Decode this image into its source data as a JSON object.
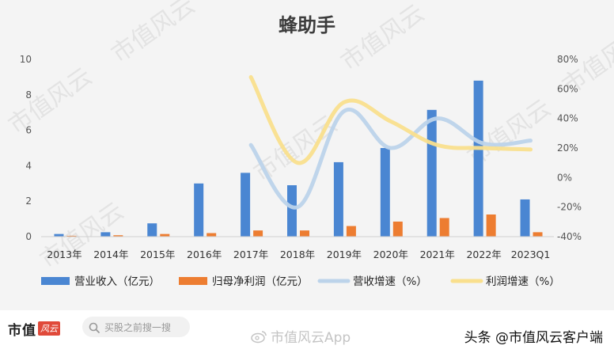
{
  "chart_data": {
    "type": "bar+line",
    "title": "蜂助手",
    "categories": [
      "2013年",
      "2014年",
      "2015年",
      "2016年",
      "2017年",
      "2018年",
      "2019年",
      "2020年",
      "2021年",
      "2022年",
      "2023Q1"
    ],
    "left_axis": {
      "min": 0,
      "max": 10,
      "ticks": [
        "0",
        "2",
        "4",
        "6",
        "8",
        "10"
      ]
    },
    "right_axis": {
      "min": -40,
      "max": 80,
      "ticks": [
        "-40%",
        "-20%",
        "0%",
        "20%",
        "40%",
        "60%",
        "80%"
      ]
    },
    "grid": false,
    "legend_position": "bottom",
    "series": [
      {
        "name": "营业收入（亿元）",
        "kind": "bar",
        "axis": "left",
        "color": "#4a86d2",
        "values": [
          0.15,
          0.25,
          0.75,
          3.0,
          3.6,
          2.9,
          4.2,
          5.0,
          7.15,
          8.8,
          2.1
        ]
      },
      {
        "name": "归母净利润（亿元）",
        "kind": "bar",
        "axis": "left",
        "color": "#ed7d31",
        "values": [
          0.05,
          0.08,
          0.15,
          0.2,
          0.35,
          0.35,
          0.6,
          0.85,
          1.05,
          1.25,
          0.25
        ]
      },
      {
        "name": "营收增速（%）",
        "kind": "line",
        "axis": "right",
        "color": "#bcd3ea",
        "values": [
          null,
          null,
          null,
          null,
          22,
          -20,
          45,
          20,
          40,
          23,
          25
        ]
      },
      {
        "name": "利润增速（%）",
        "kind": "line",
        "axis": "right",
        "color": "#f9df8d",
        "values": [
          null,
          null,
          null,
          null,
          68,
          10,
          51,
          38,
          22,
          20,
          19
        ]
      }
    ]
  },
  "watermark_text": "市值风云",
  "footer": {
    "brand_text": "市值",
    "brand_stamp": "风云",
    "search_placeholder": "买股之前搜一搜",
    "app_watermark": "市值风云App",
    "credit": "头条 @市值风云客户端"
  }
}
